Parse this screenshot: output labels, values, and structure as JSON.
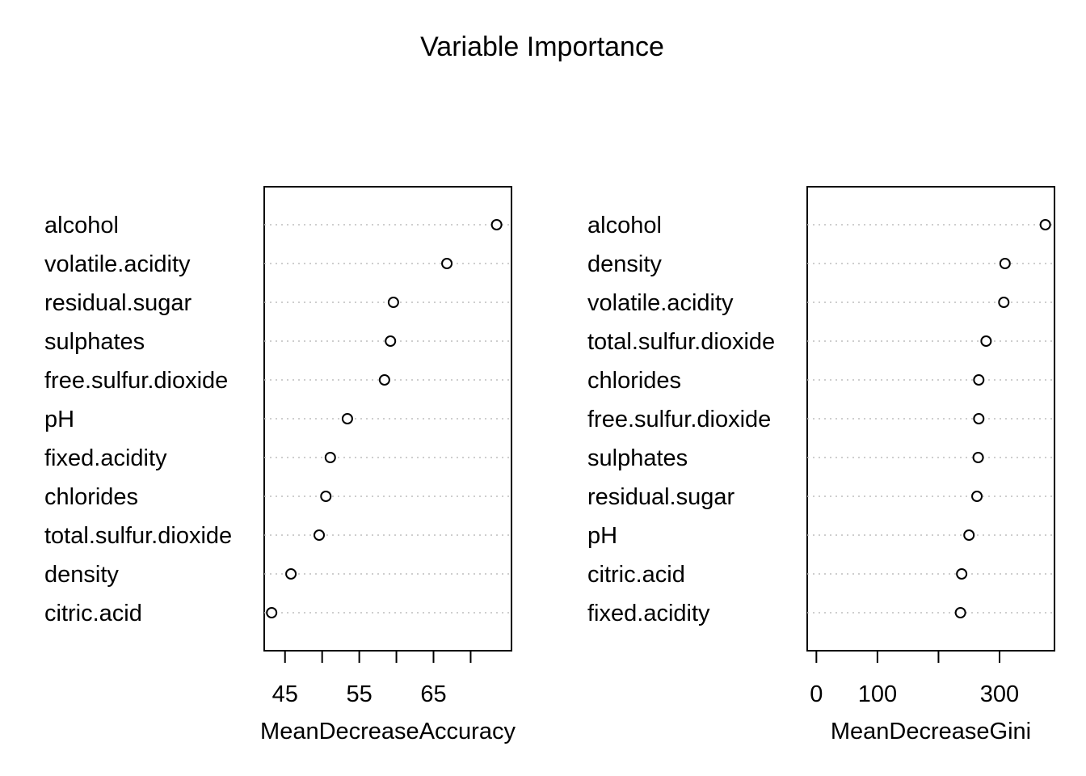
{
  "chart_data": {
    "title": "Variable Importance",
    "panels": [
      {
        "type": "scatter",
        "xlabel": "MeanDecreaseAccuracy",
        "xlim": [
          42.2,
          75.5
        ],
        "ticks": [
          45,
          50,
          55,
          60,
          65,
          70
        ],
        "tick_labels": [
          "45",
          "",
          "55",
          "",
          "65",
          ""
        ],
        "grid": "dotted horizontal",
        "labels": [
          "alcohol",
          "volatile.acidity",
          "residual.sugar",
          "sulphates",
          "free.sulfur.dioxide",
          "pH",
          "fixed.acidity",
          "chlorides",
          "total.sulfur.dioxide",
          "density",
          "citric.acid"
        ],
        "values": [
          73.5,
          66.8,
          59.6,
          59.2,
          58.4,
          53.4,
          51.1,
          50.5,
          49.6,
          45.8,
          43.2
        ]
      },
      {
        "type": "scatter",
        "xlabel": "MeanDecreaseGini",
        "xlim": [
          -15,
          390
        ],
        "ticks": [
          0,
          100,
          200,
          300
        ],
        "tick_labels": [
          "0",
          "100",
          "",
          "300"
        ],
        "grid": "dotted horizontal",
        "labels": [
          "alcohol",
          "density",
          "volatile.acidity",
          "total.sulfur.dioxide",
          "chlorides",
          "free.sulfur.dioxide",
          "sulphates",
          "residual.sugar",
          "pH",
          "citric.acid",
          "fixed.acidity"
        ],
        "values": [
          375,
          309,
          307,
          278,
          266,
          266,
          265,
          263,
          250,
          238,
          236
        ]
      }
    ]
  }
}
